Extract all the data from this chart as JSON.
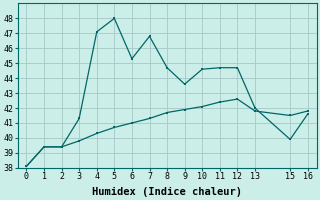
{
  "xlabel": "Humidex (Indice chaleur)",
  "bg_color": "#cceee8",
  "grid_color": "#aacccc",
  "line_color": "#006666",
  "ylim": [
    38,
    49
  ],
  "xlim": [
    -0.5,
    16.5
  ],
  "yticks": [
    38,
    39,
    40,
    41,
    42,
    43,
    44,
    45,
    46,
    47,
    48
  ],
  "xticks": [
    0,
    1,
    2,
    3,
    4,
    5,
    6,
    7,
    8,
    9,
    10,
    11,
    12,
    13,
    15,
    16
  ],
  "series1_x": [
    0,
    1,
    2,
    3,
    4,
    5,
    6,
    7,
    8,
    9,
    10,
    11,
    12,
    13,
    15,
    16
  ],
  "series1_y": [
    38.1,
    39.4,
    39.4,
    41.3,
    47.1,
    48.0,
    45.3,
    46.8,
    44.7,
    43.6,
    44.6,
    44.7,
    44.7,
    42.0,
    39.9,
    41.6
  ],
  "series2_x": [
    0,
    1,
    2,
    3,
    4,
    5,
    6,
    7,
    8,
    9,
    10,
    11,
    12,
    13,
    15,
    16
  ],
  "series2_y": [
    38.1,
    39.4,
    39.4,
    39.8,
    40.3,
    40.7,
    41.0,
    41.3,
    41.7,
    41.9,
    42.1,
    42.4,
    42.6,
    41.8,
    41.5,
    41.8
  ],
  "font_family": "monospace",
  "tick_fontsize": 6.0,
  "xlabel_fontsize": 7.5
}
